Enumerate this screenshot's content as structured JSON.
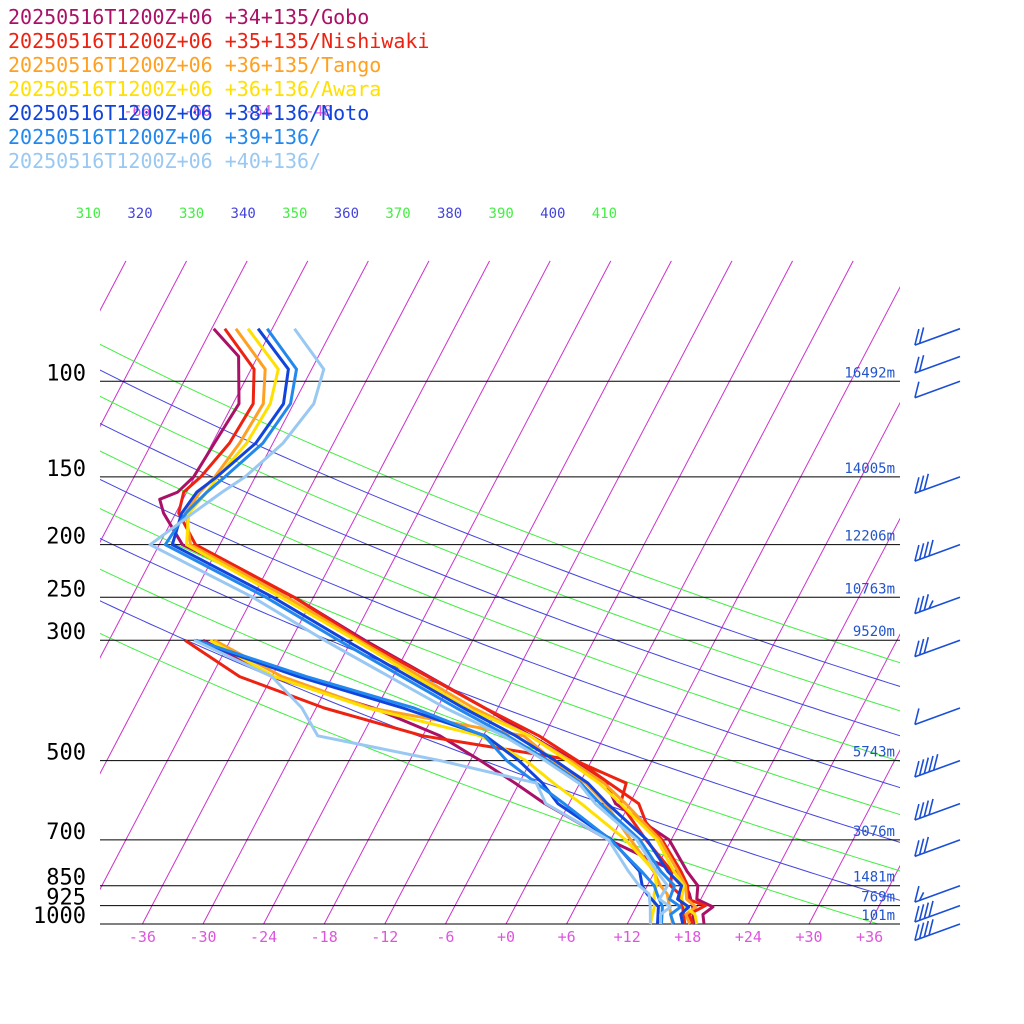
{
  "colors": {
    "background": "#ffffff",
    "isobar": "#000000",
    "isotherm": "#cc33cc",
    "isotherm_label": "#dd55dd",
    "theta_blue": "#4444dd",
    "theta_green": "#44ee44",
    "height_label": "#2255cc",
    "wind_barb": "#1a4fd6"
  },
  "chart_data": {
    "type": "line",
    "subtype": "skew-T log-p sounding",
    "title": "",
    "y_axis": {
      "scale": "log",
      "direction": "inverted",
      "ylim": [
        1000,
        70
      ]
    },
    "x_axis": {
      "skewed": true,
      "xlim": [
        -39,
        39
      ]
    },
    "grid": true,
    "legend_placement": "top-left",
    "pressure_levels": [
      {
        "p": 100,
        "label": "100",
        "height": "16492m"
      },
      {
        "p": 150,
        "label": "150",
        "height": "14005m"
      },
      {
        "p": 200,
        "label": "200",
        "height": "12206m"
      },
      {
        "p": 250,
        "label": "250",
        "height": "10763m"
      },
      {
        "p": 300,
        "label": "300",
        "height": "9520m"
      },
      {
        "p": 500,
        "label": "500",
        "height": "5743m"
      },
      {
        "p": 700,
        "label": "700",
        "height": "3076m"
      },
      {
        "p": 850,
        "label": "850",
        "height": "1481m"
      },
      {
        "p": 925,
        "label": "925",
        "height": "769m"
      },
      {
        "p": 1000,
        "label": "1000",
        "height": "101m"
      }
    ],
    "temperature_ticks": [
      "-36",
      "-30",
      "-24",
      "-18",
      "-12",
      "-6",
      "+0",
      "+6",
      "+12",
      "+18",
      "+24",
      "+30",
      "+36"
    ],
    "temperature_tick_values": [
      -36,
      -30,
      -24,
      -18,
      -12,
      -6,
      0,
      6,
      12,
      18,
      24,
      30,
      36
    ],
    "upper_temperature_ticks": [
      "-66",
      "-60",
      "-54",
      "-48"
    ],
    "upper_temperature_tick_values": [
      -66,
      -60,
      -54,
      -48
    ],
    "theta_labels": [
      "310",
      "320",
      "330",
      "340",
      "350",
      "360",
      "370",
      "380",
      "390",
      "400",
      "410"
    ],
    "theta_values": [
      310,
      320,
      330,
      340,
      350,
      360,
      370,
      380,
      390,
      400,
      410
    ],
    "series": [
      {
        "name": "20250516T1200Z+06 +34+135/Gobo",
        "color": "#aa1166",
        "temperature": [
          [
            1000,
            19.6
          ],
          [
            960,
            19.0
          ],
          [
            930,
            19.6
          ],
          [
            900,
            17.6
          ],
          [
            850,
            17.0
          ],
          [
            800,
            15.2
          ],
          [
            700,
            11.8
          ],
          [
            600,
            4.6
          ],
          [
            550,
            2.6
          ],
          [
            500,
            -1.8
          ],
          [
            450,
            -7.3
          ],
          [
            400,
            -13.3
          ],
          [
            300,
            -28.7
          ],
          [
            250,
            -37.9
          ],
          [
            200,
            -51.7
          ],
          [
            175,
            -55.2
          ],
          [
            165,
            -56.3
          ],
          [
            160,
            -54.9
          ],
          [
            150,
            -54.1
          ],
          [
            130,
            -53.8
          ],
          [
            110,
            -53.4
          ],
          [
            90,
            -55.9
          ],
          [
            80,
            -59.8
          ]
        ],
        "dewpoint": [
          [
            1000,
            18.6
          ],
          [
            930,
            17.6
          ],
          [
            880,
            16.6
          ],
          [
            850,
            15.8
          ],
          [
            800,
            14.0
          ],
          [
            700,
            5.8
          ],
          [
            600,
            -2.4
          ],
          [
            550,
            -6.4
          ],
          [
            500,
            -11.0
          ],
          [
            450,
            -16.3
          ],
          [
            400,
            -24.3
          ],
          [
            350,
            -36.0
          ],
          [
            300,
            -44.7
          ]
        ]
      },
      {
        "name": "20250516T1200Z+06 +35+135/Nishiwaki",
        "color": "#ee2211",
        "temperature": [
          [
            1000,
            18.5
          ],
          [
            960,
            17.6
          ],
          [
            925,
            18.8
          ],
          [
            900,
            16.7
          ],
          [
            850,
            16.0
          ],
          [
            800,
            14.6
          ],
          [
            700,
            11.1
          ],
          [
            650,
            8.6
          ],
          [
            600,
            6.9
          ],
          [
            550,
            2.9
          ],
          [
            500,
            -1.4
          ],
          [
            450,
            -6.5
          ],
          [
            400,
            -13.3
          ],
          [
            300,
            -29.0
          ],
          [
            250,
            -37.9
          ],
          [
            200,
            -50.4
          ],
          [
            175,
            -53.7
          ],
          [
            160,
            -54.3
          ],
          [
            150,
            -53.4
          ],
          [
            130,
            -52.3
          ],
          [
            110,
            -52.0
          ],
          [
            95,
            -53.7
          ],
          [
            80,
            -58.7
          ]
        ],
        "dewpoint": [
          [
            1000,
            17.7
          ],
          [
            930,
            16.6
          ],
          [
            880,
            15.6
          ],
          [
            850,
            14.3
          ],
          [
            800,
            13.7
          ],
          [
            700,
            9.5
          ],
          [
            600,
            5.1
          ],
          [
            550,
            4.6
          ],
          [
            500,
            -1.6
          ],
          [
            450,
            -18.0
          ],
          [
            400,
            -29.2
          ],
          [
            350,
            -39.2
          ],
          [
            300,
            -46.5
          ]
        ]
      },
      {
        "name": "20250516T1200Z+06 +36+135/Tango",
        "color": "#ffa020",
        "temperature": [
          [
            1000,
            18.2
          ],
          [
            960,
            17.3
          ],
          [
            930,
            17.9
          ],
          [
            900,
            16.6
          ],
          [
            850,
            15.8
          ],
          [
            800,
            14.3
          ],
          [
            700,
            10.9
          ],
          [
            600,
            5.6
          ],
          [
            550,
            2.4
          ],
          [
            500,
            -2.1
          ],
          [
            450,
            -7.4
          ],
          [
            400,
            -14.4
          ],
          [
            300,
            -29.3
          ],
          [
            250,
            -38.6
          ],
          [
            200,
            -50.9
          ],
          [
            175,
            -53.0
          ],
          [
            160,
            -52.7
          ],
          [
            150,
            -52.0
          ],
          [
            130,
            -51.3
          ],
          [
            110,
            -51.0
          ],
          [
            95,
            -52.6
          ],
          [
            80,
            -57.6
          ]
        ],
        "dewpoint": [
          [
            1000,
            16.5
          ],
          [
            930,
            15.3
          ],
          [
            880,
            14.4
          ],
          [
            850,
            13.3
          ],
          [
            800,
            11.9
          ],
          [
            700,
            8.0
          ],
          [
            600,
            3.6
          ],
          [
            550,
            0.6
          ],
          [
            500,
            -3.8
          ],
          [
            450,
            -8.0
          ],
          [
            400,
            -24.6
          ],
          [
            350,
            -35.0
          ],
          [
            300,
            -43.6
          ]
        ]
      },
      {
        "name": "20250516T1200Z+06 +36+136/Awara",
        "color": "#ffe000",
        "temperature": [
          [
            1000,
            18.9
          ],
          [
            960,
            18.2
          ],
          [
            930,
            16.9
          ],
          [
            900,
            16.1
          ],
          [
            850,
            15.6
          ],
          [
            800,
            13.9
          ],
          [
            700,
            10.6
          ],
          [
            600,
            5.1
          ],
          [
            550,
            1.9
          ],
          [
            500,
            -2.4
          ],
          [
            450,
            -7.4
          ],
          [
            400,
            -15.1
          ],
          [
            300,
            -29.6
          ],
          [
            250,
            -39.2
          ],
          [
            200,
            -51.3
          ],
          [
            175,
            -52.7
          ],
          [
            160,
            -52.0
          ],
          [
            150,
            -51.7
          ],
          [
            130,
            -50.6
          ],
          [
            110,
            -50.3
          ],
          [
            95,
            -51.3
          ],
          [
            80,
            -56.4
          ]
        ],
        "dewpoint": [
          [
            1000,
            14.3
          ],
          [
            930,
            13.8
          ],
          [
            880,
            13.1
          ],
          [
            850,
            12.9
          ],
          [
            800,
            12.0
          ],
          [
            700,
            7.5
          ],
          [
            600,
            1.2
          ],
          [
            550,
            -2.6
          ],
          [
            500,
            -6.5
          ],
          [
            450,
            -12.3
          ],
          [
            400,
            -24.9
          ],
          [
            350,
            -35.8
          ],
          [
            300,
            -44.0
          ]
        ]
      },
      {
        "name": "20250516T1200Z+06 +38+136/Noto",
        "color": "#1144dd",
        "temperature": [
          [
            1000,
            17.5
          ],
          [
            960,
            16.8
          ],
          [
            930,
            17.2
          ],
          [
            900,
            15.7
          ],
          [
            850,
            15.4
          ],
          [
            800,
            13.3
          ],
          [
            700,
            9.6
          ],
          [
            600,
            3.8
          ],
          [
            550,
            0.8
          ],
          [
            500,
            -3.6
          ],
          [
            450,
            -8.8
          ],
          [
            400,
            -15.4
          ],
          [
            300,
            -30.6
          ],
          [
            250,
            -40.0
          ],
          [
            200,
            -52.7
          ],
          [
            175,
            -53.4
          ],
          [
            160,
            -53.0
          ],
          [
            150,
            -51.8
          ],
          [
            130,
            -49.7
          ],
          [
            110,
            -49.0
          ],
          [
            95,
            -50.3
          ],
          [
            80,
            -55.4
          ]
        ],
        "dewpoint": [
          [
            1000,
            15.0
          ],
          [
            930,
            14.2
          ],
          [
            880,
            12.4
          ],
          [
            850,
            11.5
          ],
          [
            800,
            10.5
          ],
          [
            700,
            6.1
          ],
          [
            600,
            -1.1
          ],
          [
            550,
            -3.7
          ],
          [
            500,
            -7.2
          ],
          [
            450,
            -11.8
          ],
          [
            400,
            -21.4
          ],
          [
            350,
            -33.4
          ],
          [
            300,
            -45.6
          ]
        ]
      },
      {
        "name": "20250516T1200Z+06 +39+136/",
        "color": "#2288ee",
        "temperature": [
          [
            1000,
            16.6
          ],
          [
            960,
            15.8
          ],
          [
            930,
            16.4
          ],
          [
            900,
            14.9
          ],
          [
            850,
            14.7
          ],
          [
            800,
            12.6
          ],
          [
            700,
            8.9
          ],
          [
            600,
            3.1
          ],
          [
            550,
            0.1
          ],
          [
            500,
            -4.3
          ],
          [
            450,
            -9.6
          ],
          [
            400,
            -16.1
          ],
          [
            300,
            -31.3
          ],
          [
            250,
            -40.7
          ],
          [
            200,
            -53.4
          ],
          [
            175,
            -53.0
          ],
          [
            160,
            -52.0
          ],
          [
            150,
            -51.0
          ],
          [
            130,
            -49.0
          ],
          [
            110,
            -48.3
          ],
          [
            95,
            -49.5
          ],
          [
            80,
            -54.5
          ]
        ],
        "dewpoint": [
          [
            1000,
            15.4
          ],
          [
            930,
            14.6
          ],
          [
            880,
            13.4
          ],
          [
            850,
            12.7
          ],
          [
            800,
            10.7
          ],
          [
            700,
            6.0
          ],
          [
            600,
            -0.5
          ],
          [
            550,
            -4.3
          ],
          [
            500,
            -8.4
          ],
          [
            450,
            -11.9
          ],
          [
            400,
            -20.3
          ],
          [
            350,
            -32.6
          ],
          [
            300,
            -45.4
          ]
        ]
      },
      {
        "name": "20250516T1200Z+06 +40+136/",
        "color": "#99c8f2",
        "temperature": [
          [
            1000,
            15.3
          ],
          [
            960,
            14.8
          ],
          [
            930,
            15.4
          ],
          [
            900,
            13.9
          ],
          [
            850,
            14.0
          ],
          [
            800,
            12.2
          ],
          [
            700,
            8.6
          ],
          [
            600,
            2.6
          ],
          [
            550,
            -0.1
          ],
          [
            500,
            -4.6
          ],
          [
            450,
            -10.0
          ],
          [
            400,
            -17.2
          ],
          [
            300,
            -32.7
          ],
          [
            250,
            -42.0
          ],
          [
            200,
            -54.9
          ],
          [
            175,
            -52.3
          ],
          [
            160,
            -50.5
          ],
          [
            150,
            -49.0
          ],
          [
            130,
            -47.0
          ],
          [
            110,
            -46.0
          ],
          [
            95,
            -46.8
          ],
          [
            80,
            -51.8
          ]
        ],
        "dewpoint": [
          [
            1000,
            14.3
          ],
          [
            930,
            13.4
          ],
          [
            880,
            12.6
          ],
          [
            850,
            11.2
          ],
          [
            800,
            9.4
          ],
          [
            700,
            5.8
          ],
          [
            600,
            -2.3
          ],
          [
            550,
            -4.3
          ],
          [
            500,
            -15.0
          ],
          [
            450,
            -28.4
          ],
          [
            400,
            -31.4
          ],
          [
            350,
            -36.0
          ],
          [
            300,
            -45.6
          ]
        ]
      }
    ],
    "wind_barbs": [
      {
        "p": 80,
        "speed_kt": 20
      },
      {
        "p": 90,
        "speed_kt": 20
      },
      {
        "p": 100,
        "speed_kt": 10
      },
      {
        "p": 150,
        "speed_kt": 30
      },
      {
        "p": 200,
        "speed_kt": 40
      },
      {
        "p": 250,
        "speed_kt": 35
      },
      {
        "p": 300,
        "speed_kt": 30
      },
      {
        "p": 400,
        "speed_kt": 10
      },
      {
        "p": 500,
        "speed_kt": 50
      },
      {
        "p": 600,
        "speed_kt": 40
      },
      {
        "p": 700,
        "speed_kt": 30
      },
      {
        "p": 850,
        "speed_kt": 15
      },
      {
        "p": 925,
        "speed_kt": 40
      },
      {
        "p": 1000,
        "speed_kt": 40
      }
    ]
  }
}
